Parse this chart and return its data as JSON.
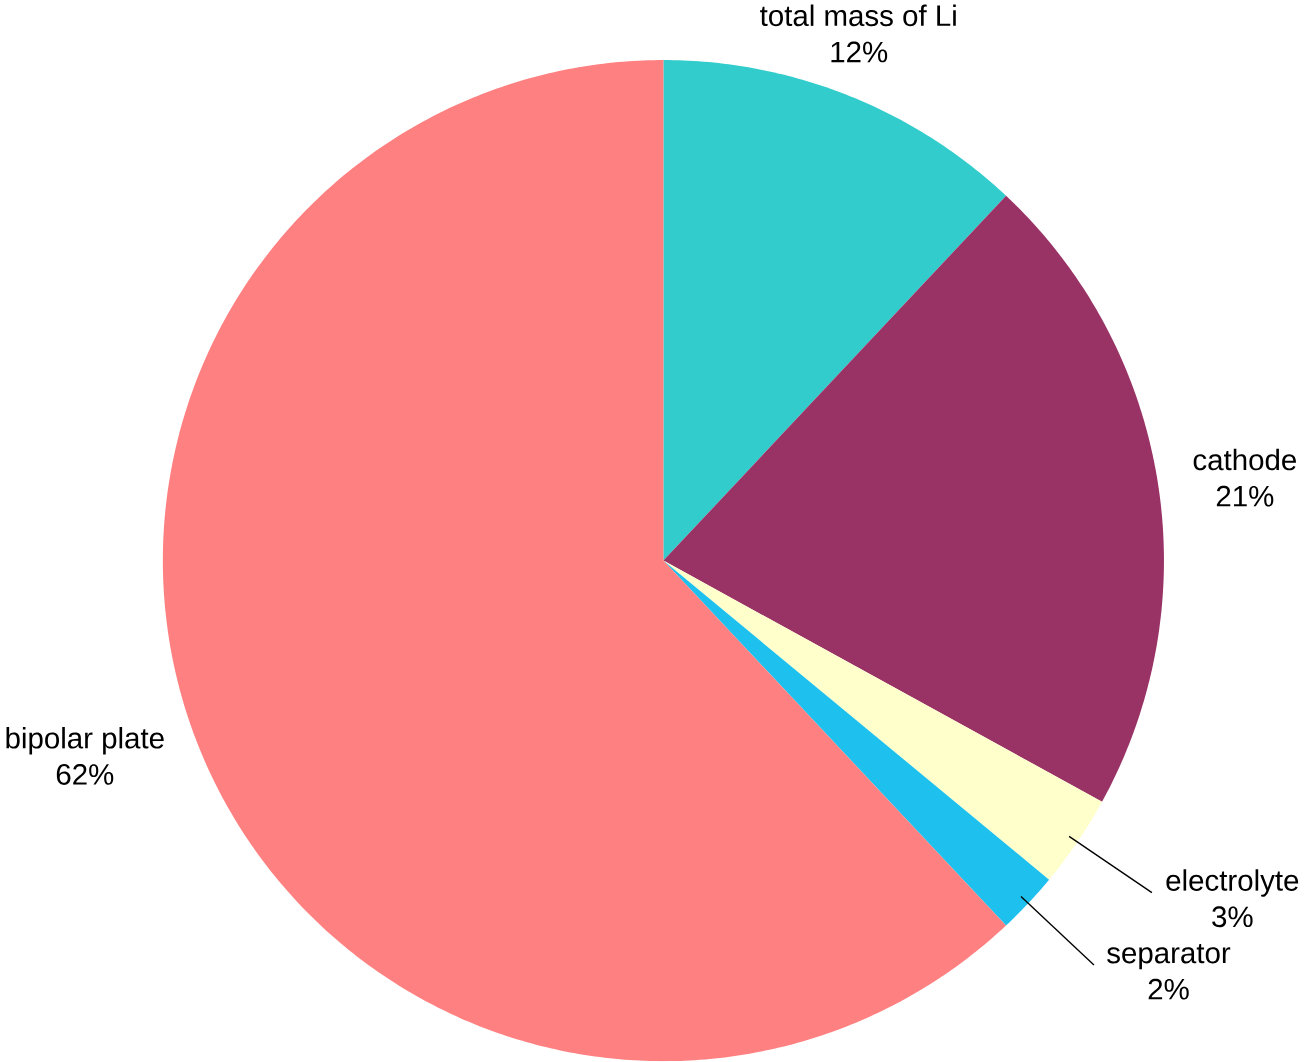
{
  "chart_data": {
    "type": "pie",
    "categories": [
      "total mass of Li",
      "cathode",
      "electrolyte",
      "separator",
      "bipolar plate"
    ],
    "values": [
      12,
      21,
      3,
      2,
      62
    ],
    "value_labels": [
      "12%",
      "21%",
      "3%",
      "2%",
      "62%"
    ],
    "colors": [
      "#33cccc",
      "#993366",
      "#ffffcc",
      "#1ec0ee",
      "#ff8080"
    ]
  }
}
